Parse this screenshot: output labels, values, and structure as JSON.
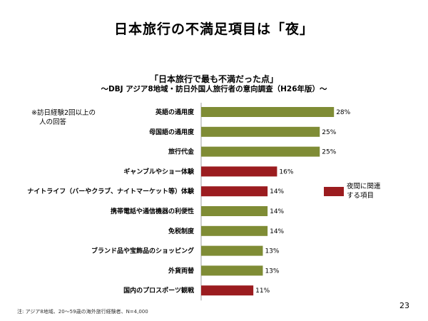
{
  "title": "日本旅行の不満足項目は「夜」",
  "subtitle": "「日本旅行で最も不満だった点」",
  "subtitle2": "～DBJ アジア8地域・訪日外国人旅行者の意向調査（H26年版）～",
  "note_lines": [
    "※訪日経験2回以上の",
    "人の回答"
  ],
  "legend": {
    "label_lines": [
      "夜間に関連",
      "する項目"
    ]
  },
  "footnote": "注: アジア8地域、20～59歳の海外旅行経験者、N=4,000",
  "page_number": "23",
  "colors": {
    "normal": "#7f8c35",
    "night": "#9b1c1f"
  },
  "chart_data": {
    "type": "bar",
    "orientation": "horizontal",
    "xlim": [
      0,
      30
    ],
    "grid": false,
    "categories": [
      "英語の通用度",
      "母国語の通用度",
      "旅行代金",
      "ギャンブルやショー体験",
      "ナイトライフ（バーやクラブ、ナイトマーケット等）体験",
      "携帯電話や通信機器の利便性",
      "免税制度",
      "ブランド品や宝飾品のショッピング",
      "外貨両替",
      "国内のプロスポーツ観戦"
    ],
    "values": [
      28,
      25,
      25,
      16,
      14,
      14,
      14,
      13,
      13,
      11
    ],
    "value_labels": [
      "28%",
      "25%",
      "25%",
      "16%",
      "14%",
      "14%",
      "14%",
      "13%",
      "13%",
      "11%"
    ],
    "night_related": [
      false,
      false,
      false,
      true,
      true,
      false,
      false,
      false,
      false,
      true
    ]
  }
}
